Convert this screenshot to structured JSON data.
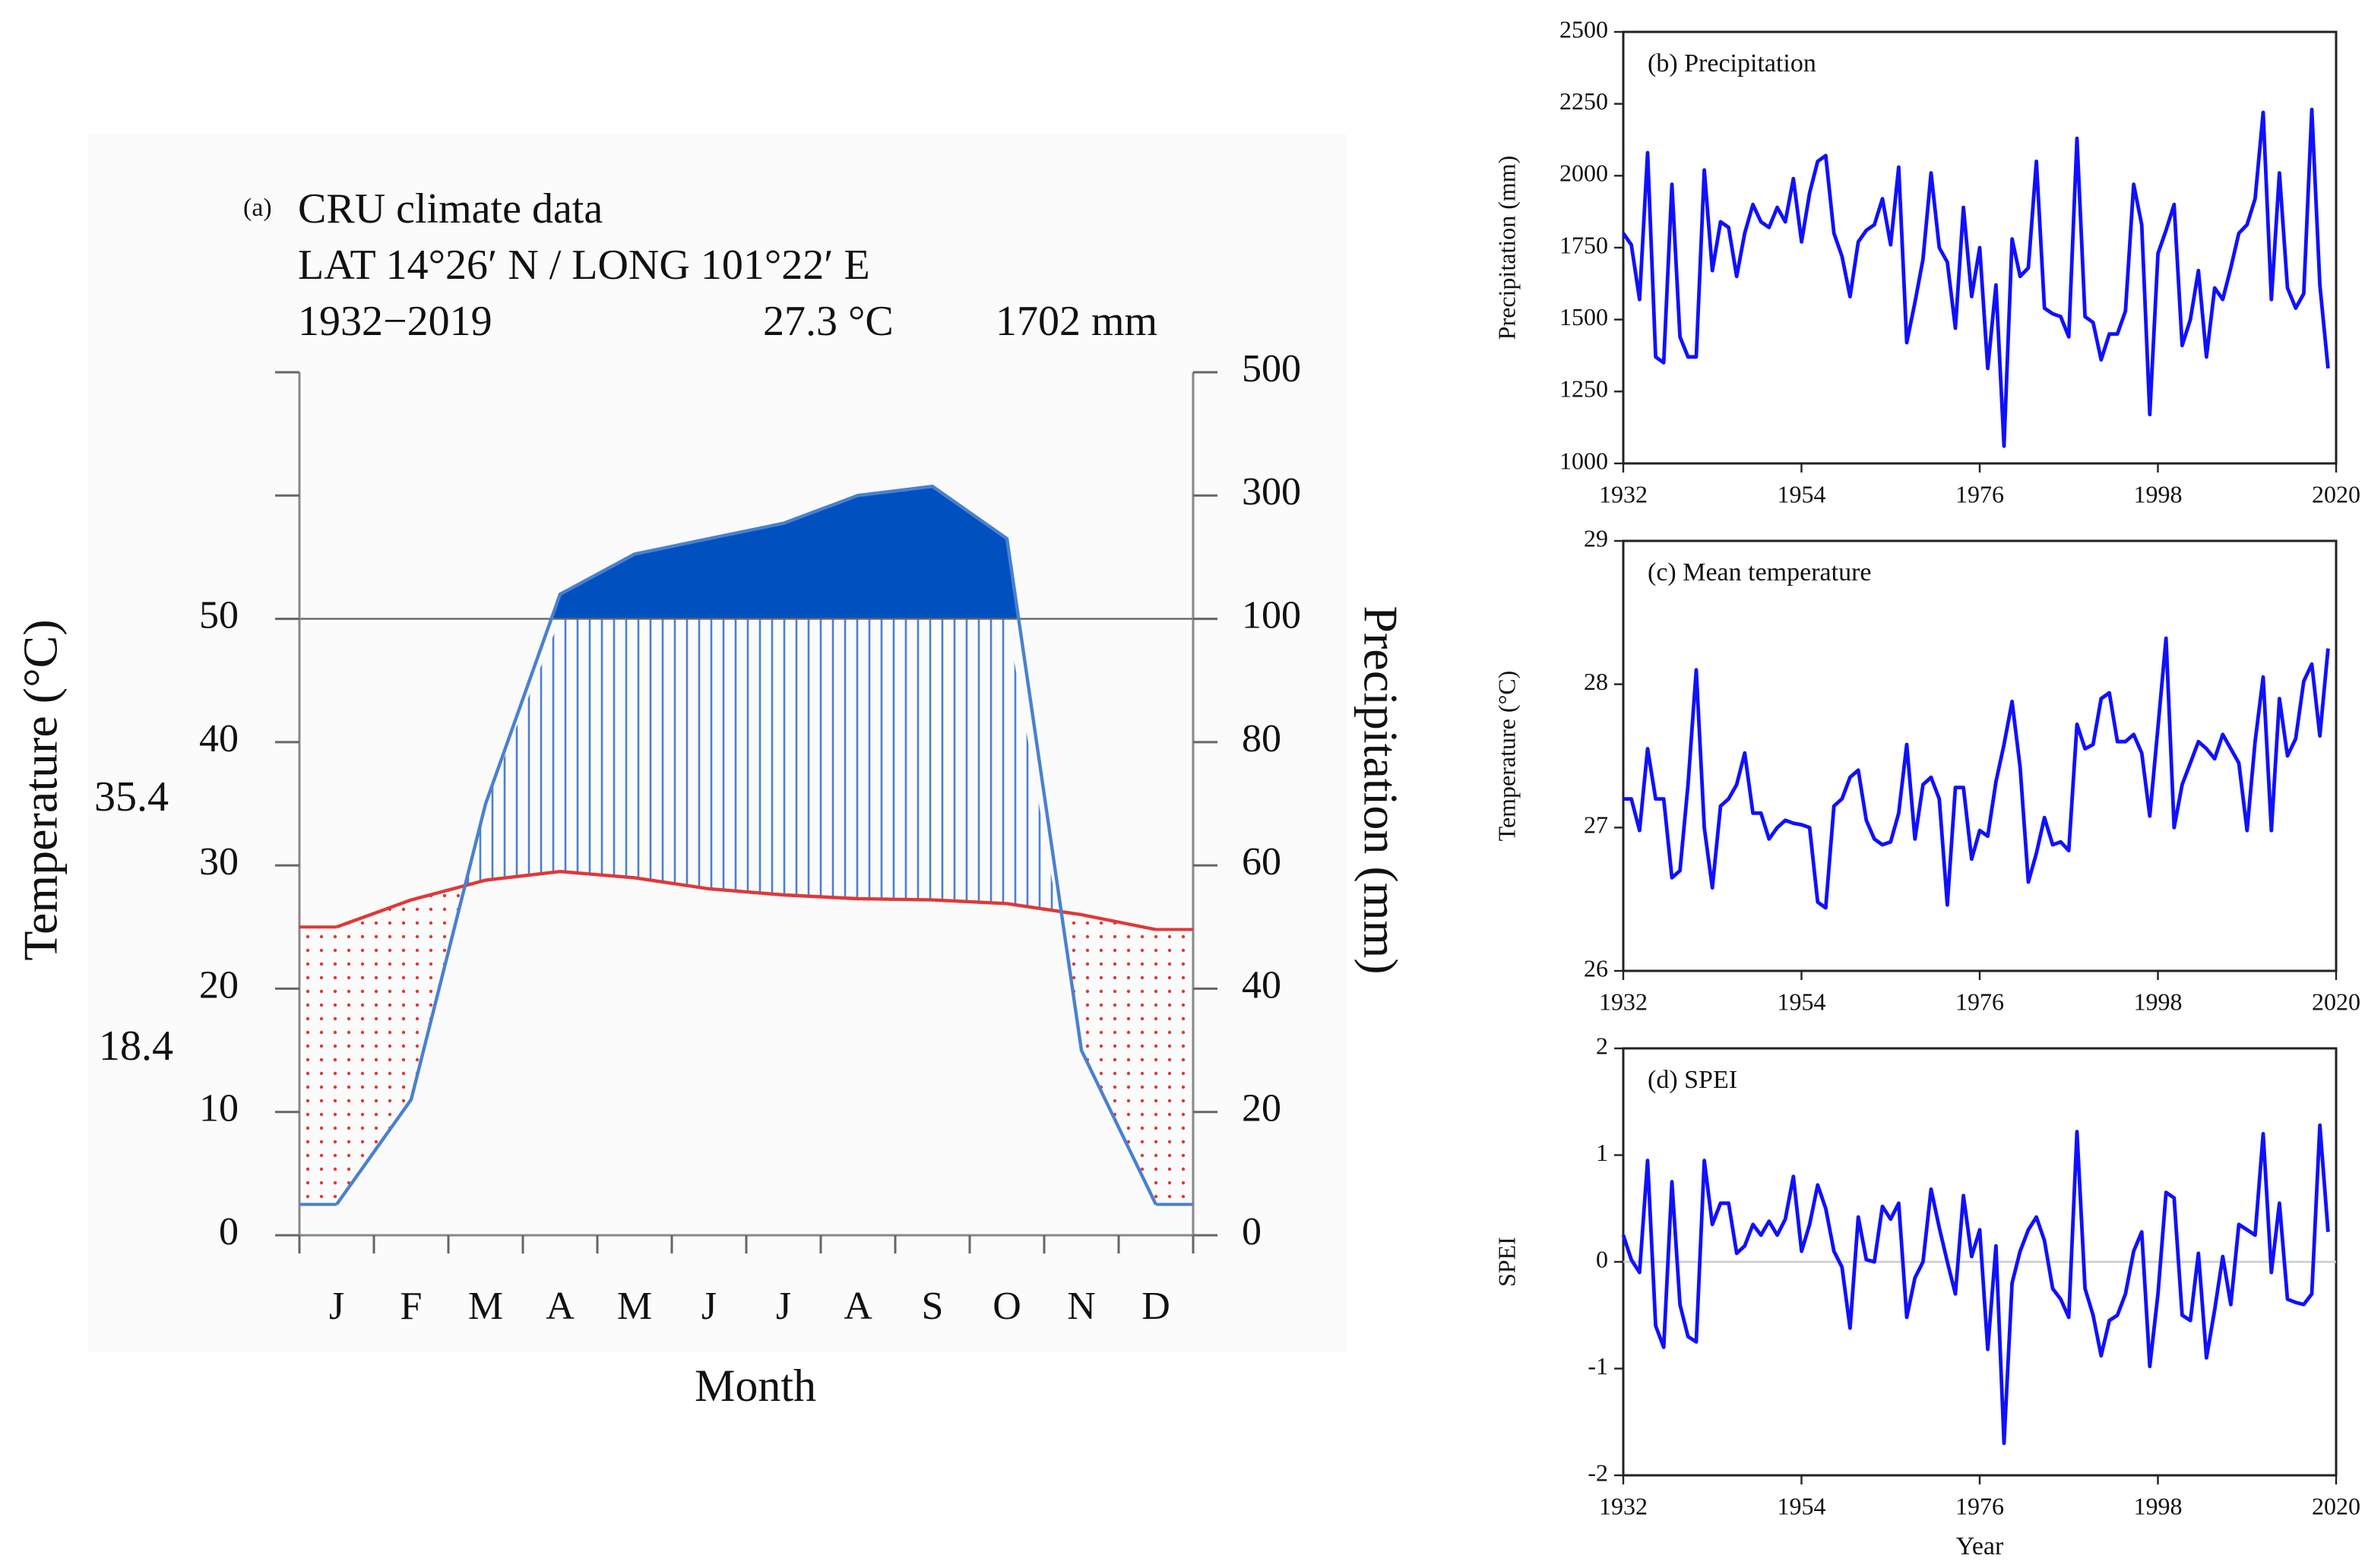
{
  "chart_data": [
    {
      "type": "climograph",
      "panel_label": "(a)",
      "title": "CRU climate data",
      "subtitle": "LAT 14°26′ N / LONG 101°22′ E",
      "annotations": [
        "1932−2019",
        "27.3 °C",
        "1702 mm",
        "35.4",
        "18.4"
      ],
      "categories": [
        "J",
        "F",
        "M",
        "A",
        "M",
        "J",
        "J",
        "A",
        "S",
        "O",
        "N",
        "D"
      ],
      "xlabel": "Month",
      "ylabel": "Temperature (°C)",
      "y2label": "Precipitation (mm)",
      "series": [
        {
          "name": "Temperature",
          "color": "#e03838",
          "axis": "y",
          "values": [
            25.0,
            27.2,
            28.8,
            29.5,
            29.0,
            28.1,
            27.6,
            27.3,
            27.2,
            26.9,
            26.0,
            24.8
          ]
        },
        {
          "name": "Precipitation",
          "color": "#4a80d0",
          "axis": "y2",
          "values": [
            5,
            22,
            70,
            140,
            205,
            230,
            255,
            300,
            315,
            230,
            30,
            5
          ]
        }
      ],
      "ylim": [
        0,
        70
      ],
      "yticks": [
        0,
        10,
        20,
        30,
        40,
        50
      ],
      "y2lim": [
        0,
        500
      ],
      "y2ticks": [
        0,
        20,
        40,
        60,
        80,
        100,
        300,
        500
      ],
      "ylabel_color": "#e0506e",
      "y2label_color": "#4a86c8",
      "humid_color": "#0050c0"
    },
    {
      "type": "line",
      "title": "(b) Precipitation",
      "ylabel": "Precipitation (mm)",
      "color": "#1010ff",
      "x": [
        1932,
        1933,
        1934,
        1935,
        1936,
        1937,
        1938,
        1939,
        1940,
        1941,
        1942,
        1943,
        1944,
        1945,
        1946,
        1947,
        1948,
        1949,
        1950,
        1951,
        1952,
        1953,
        1954,
        1955,
        1956,
        1957,
        1958,
        1959,
        1960,
        1961,
        1962,
        1963,
        1964,
        1965,
        1966,
        1967,
        1968,
        1969,
        1970,
        1971,
        1972,
        1973,
        1974,
        1975,
        1976,
        1977,
        1978,
        1979,
        1980,
        1981,
        1982,
        1983,
        1984,
        1985,
        1986,
        1987,
        1988,
        1989,
        1990,
        1991,
        1992,
        1993,
        1994,
        1995,
        1996,
        1997,
        1998,
        1999,
        2000,
        2001,
        2002,
        2003,
        2004,
        2005,
        2006,
        2007,
        2008,
        2009,
        2010,
        2011,
        2012,
        2013,
        2014,
        2015,
        2016,
        2017,
        2018,
        2019
      ],
      "values": [
        1800,
        1760,
        1570,
        2080,
        1370,
        1350,
        1970,
        1440,
        1370,
        1370,
        2020,
        1670,
        1840,
        1820,
        1650,
        1800,
        1900,
        1840,
        1820,
        1890,
        1840,
        1990,
        1770,
        1940,
        2050,
        2070,
        1800,
        1720,
        1580,
        1770,
        1810,
        1830,
        1920,
        1760,
        2030,
        1420,
        1560,
        1710,
        2010,
        1750,
        1700,
        1470,
        1890,
        1580,
        1750,
        1330,
        1620,
        1060,
        1780,
        1650,
        1680,
        2050,
        1540,
        1520,
        1510,
        1440,
        2130,
        1510,
        1490,
        1360,
        1450,
        1450,
        1530,
        1970,
        1830,
        1170,
        1730,
        1810,
        1900,
        1410,
        1500,
        1670,
        1370,
        1610,
        1570,
        1680,
        1800,
        1830,
        1920,
        2220,
        1570,
        2010,
        1610,
        1540,
        1590,
        2230,
        1620,
        1330
      ],
      "xlim": [
        1932,
        2020
      ],
      "xticks": [
        1932,
        1954,
        1976,
        1998,
        2020
      ],
      "ylim": [
        1000,
        2500
      ],
      "yticks": [
        1000,
        1250,
        1500,
        1750,
        2000,
        2250,
        2500
      ]
    },
    {
      "type": "line",
      "title": "(c) Mean temperature",
      "ylabel": "Temperature (°C)",
      "color": "#1010ff",
      "x": [
        1932,
        1933,
        1934,
        1935,
        1936,
        1937,
        1938,
        1939,
        1940,
        1941,
        1942,
        1943,
        1944,
        1945,
        1946,
        1947,
        1948,
        1949,
        1950,
        1951,
        1952,
        1953,
        1954,
        1955,
        1956,
        1957,
        1958,
        1959,
        1960,
        1961,
        1962,
        1963,
        1964,
        1965,
        1966,
        1967,
        1968,
        1969,
        1970,
        1971,
        1972,
        1973,
        1974,
        1975,
        1976,
        1977,
        1978,
        1979,
        1980,
        1981,
        1982,
        1983,
        1984,
        1985,
        1986,
        1987,
        1988,
        1989,
        1990,
        1991,
        1992,
        1993,
        1994,
        1995,
        1996,
        1997,
        1998,
        1999,
        2000,
        2001,
        2002,
        2003,
        2004,
        2005,
        2006,
        2007,
        2008,
        2009,
        2010,
        2011,
        2012,
        2013,
        2014,
        2015,
        2016,
        2017,
        2018,
        2019
      ],
      "values": [
        27.2,
        27.2,
        26.98,
        27.55,
        27.2,
        27.2,
        26.65,
        26.7,
        27.3,
        28.1,
        27.0,
        26.58,
        27.15,
        27.2,
        27.3,
        27.52,
        27.1,
        27.1,
        26.92,
        27.0,
        27.05,
        27.03,
        27.02,
        27.0,
        26.48,
        26.44,
        27.15,
        27.2,
        27.35,
        27.4,
        27.05,
        26.92,
        26.88,
        26.9,
        27.1,
        27.58,
        26.92,
        27.3,
        27.35,
        27.2,
        26.46,
        27.28,
        27.28,
        26.78,
        26.98,
        26.94,
        27.32,
        27.58,
        27.88,
        27.42,
        26.62,
        26.82,
        27.07,
        26.88,
        26.9,
        26.84,
        27.72,
        27.55,
        27.58,
        27.9,
        27.94,
        27.6,
        27.6,
        27.65,
        27.52,
        27.08,
        27.7,
        28.32,
        27.0,
        27.3,
        27.45,
        27.6,
        27.55,
        27.48,
        27.65,
        27.55,
        27.45,
        26.98,
        27.6,
        28.05,
        26.98,
        27.9,
        27.5,
        27.62,
        28.02,
        28.14,
        27.64,
        28.25
      ],
      "xlim": [
        1932,
        2020
      ],
      "xticks": [
        1932,
        1954,
        1976,
        1998,
        2020
      ],
      "ylim": [
        26,
        29
      ],
      "yticks": [
        26,
        27,
        28,
        29
      ]
    },
    {
      "type": "line",
      "title": "(d) SPEI",
      "ylabel": "SPEI",
      "xlabel": "Year",
      "color": "#1010ff",
      "zero_line": true,
      "x": [
        1932,
        1933,
        1934,
        1935,
        1936,
        1937,
        1938,
        1939,
        1940,
        1941,
        1942,
        1943,
        1944,
        1945,
        1946,
        1947,
        1948,
        1949,
        1950,
        1951,
        1952,
        1953,
        1954,
        1955,
        1956,
        1957,
        1958,
        1959,
        1960,
        1961,
        1962,
        1963,
        1964,
        1965,
        1966,
        1967,
        1968,
        1969,
        1970,
        1971,
        1972,
        1973,
        1974,
        1975,
        1976,
        1977,
        1978,
        1979,
        1980,
        1981,
        1982,
        1983,
        1984,
        1985,
        1986,
        1987,
        1988,
        1989,
        1990,
        1991,
        1992,
        1993,
        1994,
        1995,
        1996,
        1997,
        1998,
        1999,
        2000,
        2001,
        2002,
        2003,
        2004,
        2005,
        2006,
        2007,
        2008,
        2009,
        2010,
        2011,
        2012,
        2013,
        2014,
        2015,
        2016,
        2017,
        2018,
        2019
      ],
      "values": [
        0.25,
        0.02,
        -0.1,
        0.95,
        -0.6,
        -0.8,
        0.75,
        -0.4,
        -0.7,
        -0.75,
        0.95,
        0.35,
        0.55,
        0.55,
        0.08,
        0.15,
        0.35,
        0.25,
        0.38,
        0.25,
        0.4,
        0.8,
        0.1,
        0.35,
        0.72,
        0.5,
        0.1,
        -0.05,
        -0.62,
        0.42,
        0.02,
        0.0,
        0.52,
        0.4,
        0.55,
        -0.52,
        -0.15,
        0.0,
        0.68,
        0.32,
        0.0,
        -0.3,
        0.62,
        0.05,
        0.3,
        -0.82,
        0.15,
        -1.7,
        -0.2,
        0.1,
        0.3,
        0.42,
        0.2,
        -0.25,
        -0.35,
        -0.52,
        1.22,
        -0.25,
        -0.5,
        -0.88,
        -0.55,
        -0.5,
        -0.3,
        0.1,
        0.28,
        -0.98,
        -0.3,
        0.65,
        0.6,
        -0.5,
        -0.55,
        0.08,
        -0.9,
        -0.45,
        0.05,
        -0.4,
        0.35,
        0.3,
        0.25,
        1.2,
        -0.1,
        0.55,
        -0.35,
        -0.38,
        -0.4,
        -0.3,
        1.28,
        0.28
      ],
      "xlim": [
        1932,
        2020
      ],
      "xticks": [
        1932,
        1954,
        1976,
        1998,
        2020
      ],
      "ylim": [
        -2,
        2
      ],
      "yticks": [
        -2,
        -1,
        0,
        1,
        2
      ]
    }
  ]
}
